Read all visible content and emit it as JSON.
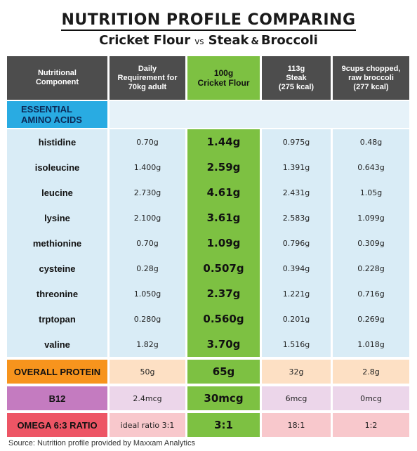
{
  "title": "NUTRITION PROFILE COMPARING",
  "subtitle": {
    "left": "Cricket Flour",
    "vs": "vs",
    "right_a": "Steak",
    "amp": "&",
    "right_b": "Broccoli"
  },
  "headers": [
    {
      "line1": "Nutritional",
      "line2": "Component",
      "line3": ""
    },
    {
      "line1": "Daily",
      "line2": "Requirement for",
      "line3": "70kg adult"
    },
    {
      "line1": "100g",
      "line2": "Cricket Flour",
      "line3": ""
    },
    {
      "line1": "113g",
      "line2": "Steak",
      "line3": "(275 kcal)"
    },
    {
      "line1": "9cups chopped,",
      "line2": "raw broccoli",
      "line3": "(277 kcal)"
    }
  ],
  "amino_section": {
    "line1": "ESSENTIAL",
    "line2": "AMINO ACIDS"
  },
  "amino_rows": [
    {
      "name": "histidine",
      "req": "0.70g",
      "cf": "1.44g",
      "steak": "0.975g",
      "broc": "0.48g"
    },
    {
      "name": "isoleucine",
      "req": "1.400g",
      "cf": "2.59g",
      "steak": "1.391g",
      "broc": "0.643g"
    },
    {
      "name": "leucine",
      "req": "2.730g",
      "cf": "4.61g",
      "steak": "2.431g",
      "broc": "1.05g"
    },
    {
      "name": "lysine",
      "req": "2.100g",
      "cf": "3.61g",
      "steak": "2.583g",
      "broc": "1.099g"
    },
    {
      "name": "methionine",
      "req": "0.70g",
      "cf": "1.09g",
      "steak": "0.796g",
      "broc": "0.309g"
    },
    {
      "name": "cysteine",
      "req": "0.28g",
      "cf": "0.507g",
      "steak": "0.394g",
      "broc": "0.228g"
    },
    {
      "name": "threonine",
      "req": "1.050g",
      "cf": "2.37g",
      "steak": "1.221g",
      "broc": "0.716g"
    },
    {
      "name": "trptopan",
      "req": "0.280g",
      "cf": "0.560g",
      "steak": "0.201g",
      "broc": "0.269g"
    },
    {
      "name": "valine",
      "req": "1.82g",
      "cf": "3.70g",
      "steak": "1.516g",
      "broc": "1.018g"
    }
  ],
  "protein": {
    "name": "OVERALL PROTEIN",
    "req": "50g",
    "cf": "65g",
    "steak": "32g",
    "broc": "2.8g"
  },
  "b12": {
    "name": "B12",
    "req": "2.4mcg",
    "cf": "30mcg",
    "steak": "6mcg",
    "broc": "0mcg"
  },
  "omega": {
    "name": "OMEGA 6:3 RATIO",
    "req": "ideal ratio 3:1",
    "cf": "3:1",
    "steak": "18:1",
    "broc": "1:2"
  },
  "source": "Source: Nutrition profile provided by Maxxam Analytics",
  "colors": {
    "header_gray": "#4d4d4d",
    "cricket_green": "#7dc142",
    "amino_blue": "#29abe2",
    "protein_orange": "#f7941d",
    "b12_purple": "#c47bc0",
    "omega_red": "#ed5565"
  }
}
